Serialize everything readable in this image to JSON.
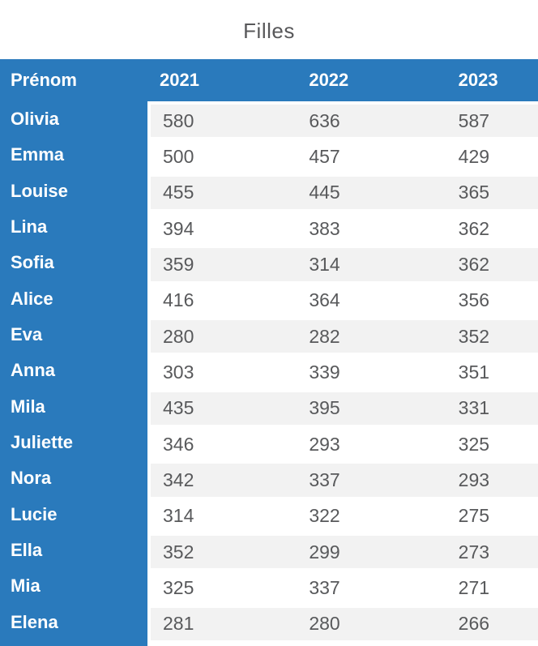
{
  "title": "Filles",
  "chart_data": {
    "type": "table",
    "title": "Filles",
    "columns": [
      "Prénom",
      "2021",
      "2022",
      "2023"
    ],
    "rows": [
      [
        "Olivia",
        580,
        636,
        587
      ],
      [
        "Emma",
        500,
        457,
        429
      ],
      [
        "Louise",
        455,
        445,
        365
      ],
      [
        "Lina",
        394,
        383,
        362
      ],
      [
        "Sofia",
        359,
        314,
        362
      ],
      [
        "Alice",
        416,
        364,
        356
      ],
      [
        "Eva",
        280,
        282,
        352
      ],
      [
        "Anna",
        303,
        339,
        351
      ],
      [
        "Mila",
        435,
        395,
        331
      ],
      [
        "Juliette",
        346,
        293,
        325
      ],
      [
        "Nora",
        342,
        337,
        293
      ],
      [
        "Lucie",
        314,
        322,
        275
      ],
      [
        "Ella",
        352,
        299,
        273
      ],
      [
        "Mia",
        325,
        337,
        271
      ],
      [
        "Elena",
        281,
        280,
        266
      ]
    ],
    "layout": {
      "header_background": "#2A7ABC",
      "name_column_background": "#2A7ABC",
      "row_alt_background": "#F2F2F2",
      "row_background": "#FFFFFF",
      "header_text_color": "#FFFFFF",
      "value_text_color": "#58595B",
      "title_color": "#58585A",
      "last_column_clipped": true
    }
  }
}
